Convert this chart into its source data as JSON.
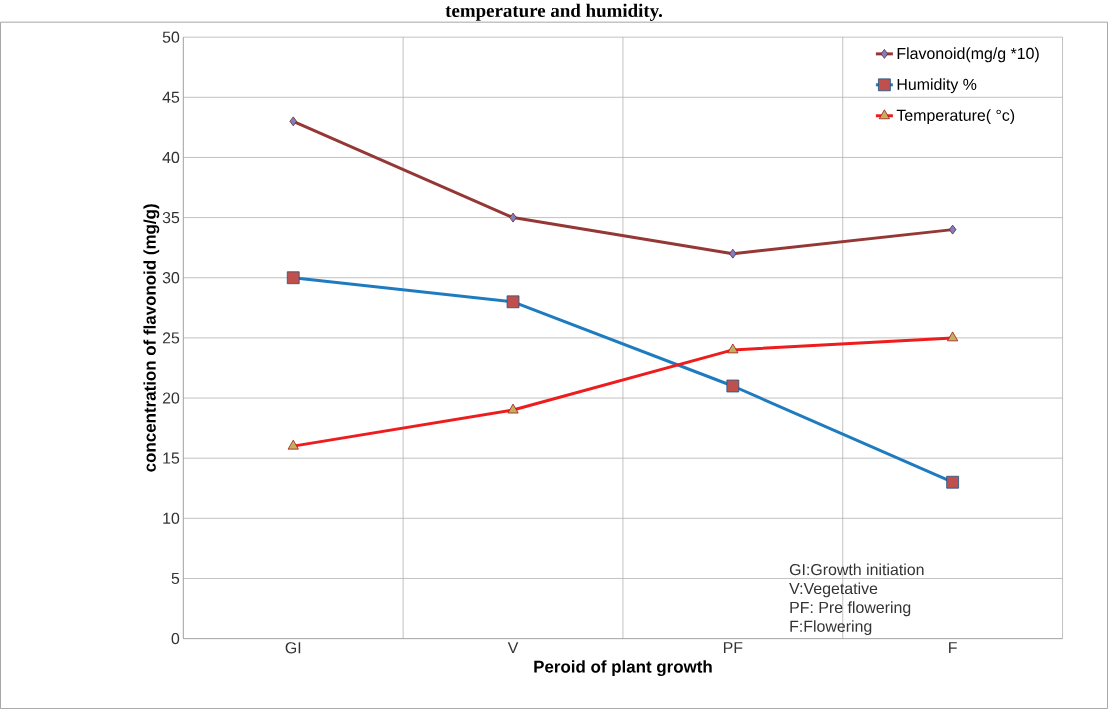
{
  "chart_data": {
    "type": "line",
    "title": "temperature and humidity.",
    "xlabel": "Peroid of plant growth",
    "ylabel": "concentration of flavonoid (mg/g)",
    "categories": [
      "GI",
      "V",
      "PF",
      "F"
    ],
    "series": [
      {
        "name": "Flavonoid(mg/g *10)",
        "color": "#953735",
        "marker": "diamond",
        "values": [
          43,
          35,
          32,
          34
        ]
      },
      {
        "name": "Humidity %",
        "color": "#1f7bc0",
        "marker": "square",
        "values": [
          30,
          28,
          21,
          13
        ]
      },
      {
        "name": "Temperature( °c)",
        "color": "#ee1c1c",
        "marker": "triangle",
        "values": [
          16,
          19,
          24,
          25
        ]
      }
    ],
    "ylim": [
      0,
      50
    ],
    "yticks": [
      0,
      5,
      10,
      15,
      20,
      25,
      30,
      35,
      40,
      45,
      50
    ],
    "grid": true,
    "legend": "top right",
    "annotations": [
      "GI:Growth initiation",
      "V:Vegetative",
      "PF: Pre flowering",
      "F:Flowering"
    ]
  }
}
